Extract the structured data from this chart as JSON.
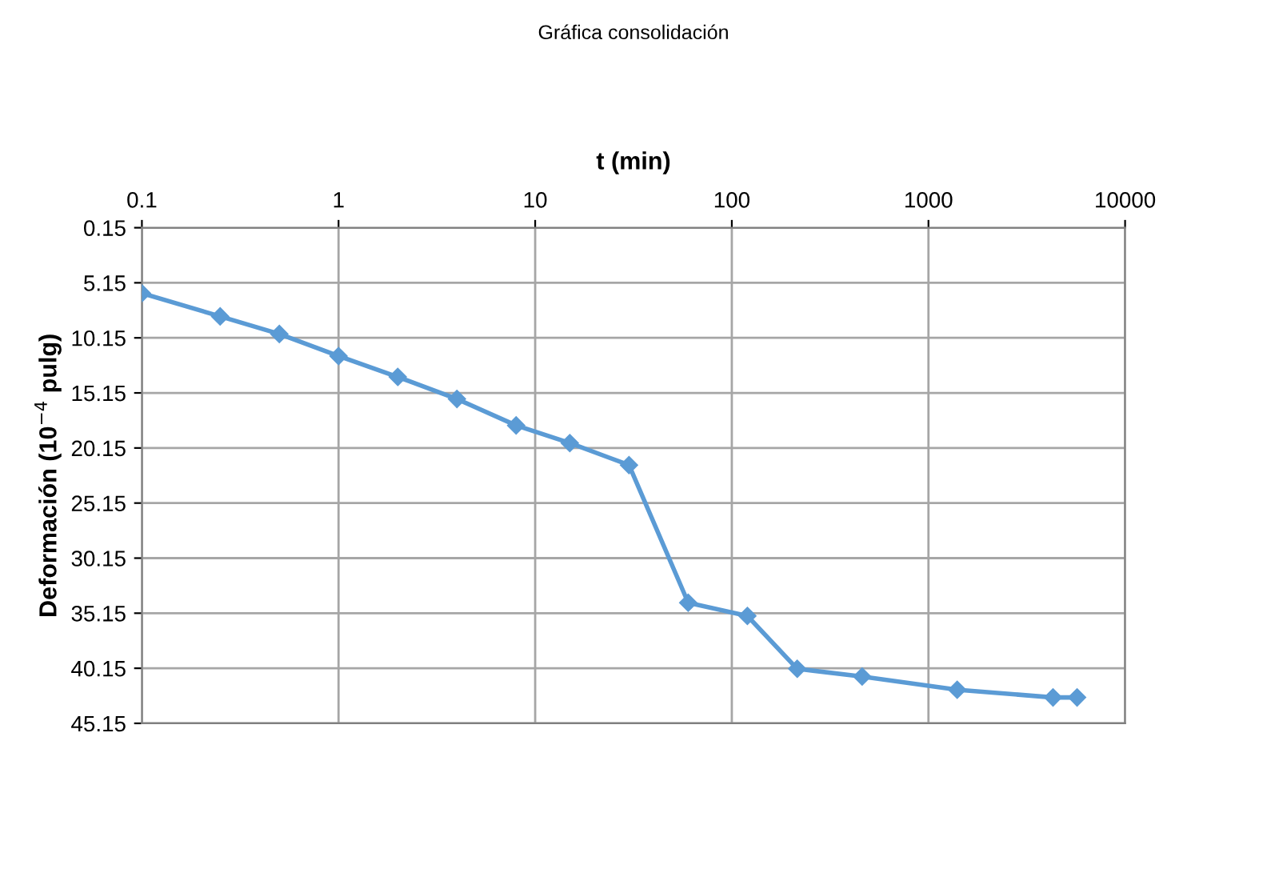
{
  "chart_data": {
    "type": "line",
    "title": "Gráfica consolidación",
    "xlabel": "t (min)",
    "ylabel": "Deformación (10$^{−4}$ pulg)",
    "log": "x",
    "xlim": [
      0.1,
      10000
    ],
    "xticks": [
      0.1,
      1,
      10,
      100,
      1000,
      10000
    ],
    "ylim": [
      45.15,
      0.15
    ],
    "yticks": [
      0.15,
      5.15,
      10.15,
      15.15,
      20.15,
      25.15,
      30.15,
      35.15,
      40.15,
      45.15
    ],
    "grid": true,
    "marker": "diamond",
    "line_style": "solid",
    "x": [
      0.1,
      0.25,
      0.5,
      1,
      2,
      4,
      8,
      15,
      30,
      60,
      120,
      215,
      460,
      1400,
      4300,
      5700
    ],
    "series": [
      {
        "color": "#5b9bd5",
        "values": [
          6.1,
          8.2,
          9.8,
          11.8,
          13.7,
          15.7,
          18.1,
          19.7,
          21.7,
          34.2,
          35.4,
          40.2,
          40.9,
          42.1,
          42.8,
          42.8
        ]
      }
    ]
  }
}
